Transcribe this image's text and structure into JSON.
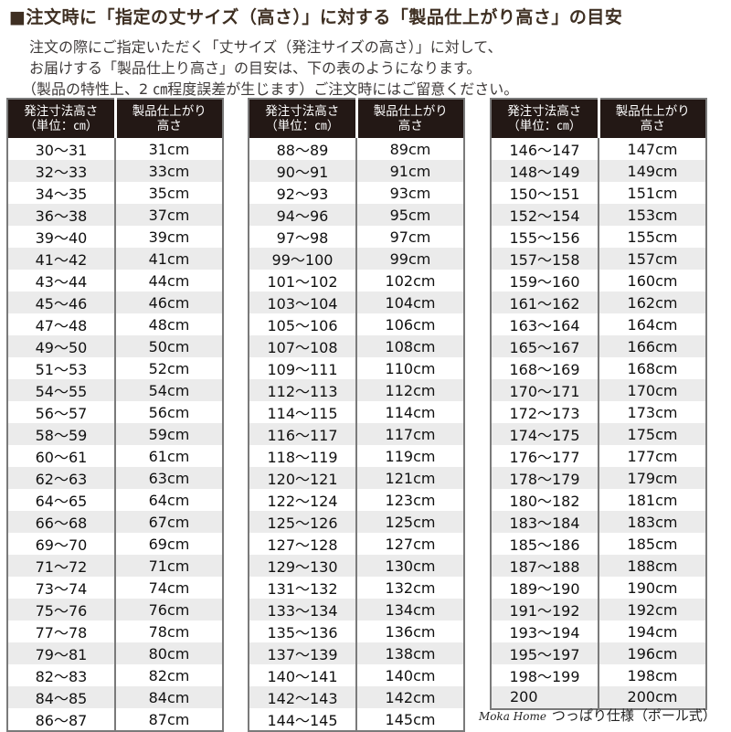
{
  "title": "■注文時に「指定の丈サイズ（高さ）」に対する「製品仕上がり高さ」の目安",
  "description": [
    "注文の際にご指定いただく「丈サイズ（発注サイズの高さ）」に対して、",
    "お届けする「製品仕上り高さ」の目安は、下の表のようになります。",
    "（製品の特性上、2 ㎝程度誤差が生じます）ご注文時にはご留意ください。"
  ],
  "table_headers": {
    "col1_line1": "発注寸法高さ",
    "col1_line2": "（単位：㎝）",
    "col2_line1": "製品仕上がり",
    "col2_line2": "高さ"
  },
  "tables": [
    [
      [
        "30～31",
        "31cm"
      ],
      [
        "32～33",
        "33cm"
      ],
      [
        "34～35",
        "35cm"
      ],
      [
        "36～38",
        "37cm"
      ],
      [
        "39～40",
        "39cm"
      ],
      [
        "41～42",
        "41cm"
      ],
      [
        "43～44",
        "44cm"
      ],
      [
        "45～46",
        "46cm"
      ],
      [
        "47～48",
        "48cm"
      ],
      [
        "49～50",
        "50cm"
      ],
      [
        "51～53",
        "52cm"
      ],
      [
        "54～55",
        "54cm"
      ],
      [
        "56～57",
        "56cm"
      ],
      [
        "58～59",
        "59cm"
      ],
      [
        "60～61",
        "61cm"
      ],
      [
        "62～63",
        "63cm"
      ],
      [
        "64～65",
        "64cm"
      ],
      [
        "66～68",
        "67cm"
      ],
      [
        "69～70",
        "69cm"
      ],
      [
        "71～72",
        "71cm"
      ],
      [
        "73～74",
        "74cm"
      ],
      [
        "75～76",
        "76cm"
      ],
      [
        "77～78",
        "78cm"
      ],
      [
        "79～81",
        "80cm"
      ],
      [
        "82～83",
        "82cm"
      ],
      [
        "84～85",
        "84cm"
      ],
      [
        "86～87",
        "87cm"
      ]
    ],
    [
      [
        "88～89",
        "89cm"
      ],
      [
        "90～91",
        "91cm"
      ],
      [
        "92～93",
        "93cm"
      ],
      [
        "94～96",
        "95cm"
      ],
      [
        "97～98",
        "97cm"
      ],
      [
        "99～100",
        "99cm"
      ],
      [
        "101～102",
        "102cm"
      ],
      [
        "103～104",
        "104cm"
      ],
      [
        "105～106",
        "106cm"
      ],
      [
        "107～108",
        "108cm"
      ],
      [
        "109～111",
        "110cm"
      ],
      [
        "112～113",
        "112cm"
      ],
      [
        "114～115",
        "114cm"
      ],
      [
        "116～117",
        "117cm"
      ],
      [
        "118～119",
        "119cm"
      ],
      [
        "120～121",
        "121cm"
      ],
      [
        "122～124",
        "123cm"
      ],
      [
        "125～126",
        "125cm"
      ],
      [
        "127～128",
        "127cm"
      ],
      [
        "129～130",
        "130cm"
      ],
      [
        "131～132",
        "132cm"
      ],
      [
        "133～134",
        "134cm"
      ],
      [
        "135～136",
        "136cm"
      ],
      [
        "137～139",
        "138cm"
      ],
      [
        "140～141",
        "140cm"
      ],
      [
        "142～143",
        "142cm"
      ],
      [
        "144～145",
        "145cm"
      ]
    ],
    [
      [
        "146～147",
        "147cm"
      ],
      [
        "148～149",
        "149cm"
      ],
      [
        "150～151",
        "151cm"
      ],
      [
        "152～154",
        "153cm"
      ],
      [
        "155～156",
        "155cm"
      ],
      [
        "157～158",
        "157cm"
      ],
      [
        "159～160",
        "160cm"
      ],
      [
        "161～162",
        "162cm"
      ],
      [
        "163～164",
        "164cm"
      ],
      [
        "165～167",
        "166cm"
      ],
      [
        "168～169",
        "168cm"
      ],
      [
        "170～171",
        "170cm"
      ],
      [
        "172～173",
        "173cm"
      ],
      [
        "174～175",
        "175cm"
      ],
      [
        "176～177",
        "177cm"
      ],
      [
        "178～179",
        "179cm"
      ],
      [
        "180～182",
        "181cm"
      ],
      [
        "183～184",
        "183cm"
      ],
      [
        "185～186",
        "185cm"
      ],
      [
        "187～188",
        "188cm"
      ],
      [
        "189～190",
        "190cm"
      ],
      [
        "191～192",
        "192cm"
      ],
      [
        "193～194",
        "194cm"
      ],
      [
        "195～197",
        "196cm"
      ],
      [
        "198～199",
        "198cm"
      ],
      [
        "200",
        "200cm"
      ]
    ]
  ],
  "footer": {
    "brand": "Moka Home",
    "text": "つっぱり仕様（ポール式）"
  },
  "colors": {
    "header_bg": "#231815",
    "alt_row": "#ebebeb",
    "title": "#3e2f22"
  }
}
